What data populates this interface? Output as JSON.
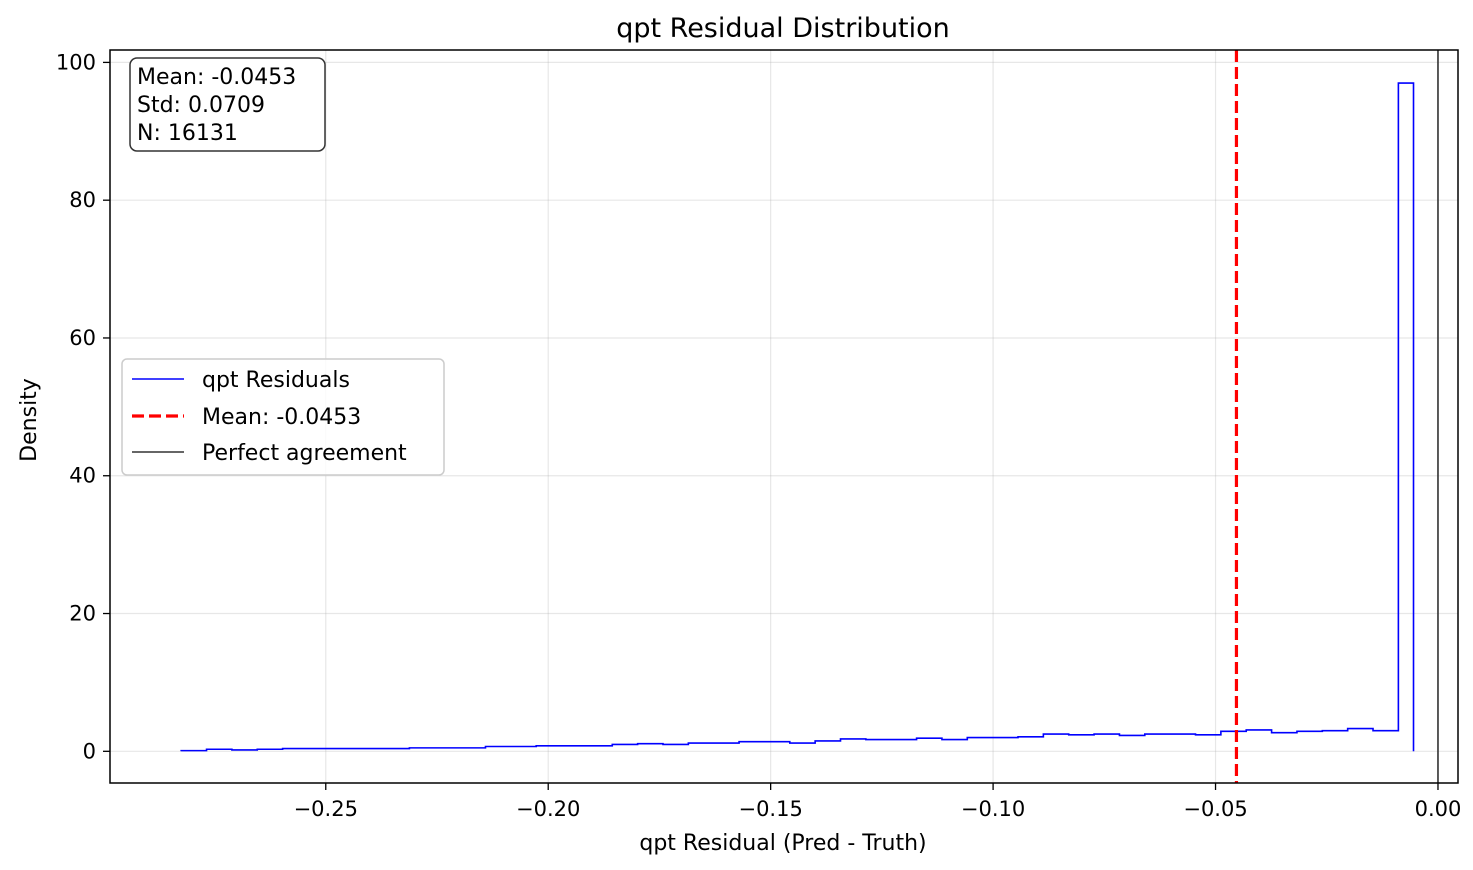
{
  "chart_data": {
    "type": "histogram-step",
    "title": "qpt Residual Distribution",
    "xlabel": "qpt Residual (Pred - Truth)",
    "ylabel": "Density",
    "xlim": [
      -0.2985,
      0.0045
    ],
    "ylim": [
      -4.6,
      101.8
    ],
    "xticks": [
      -0.25,
      -0.2,
      -0.15,
      -0.1,
      -0.05,
      0.0
    ],
    "xtick_labels": [
      "−0.25",
      "−0.20",
      "−0.15",
      "−0.10",
      "−0.05",
      "0.00"
    ],
    "yticks": [
      0,
      20,
      40,
      60,
      80,
      100
    ],
    "ytick_labels": [
      "0",
      "20",
      "40",
      "60",
      "80",
      "100"
    ],
    "grid": true,
    "series": [
      {
        "name": "qpt Residuals",
        "color": "#0000ff",
        "bin_edges": [
          -0.2825,
          -0.2768,
          -0.2711,
          -0.2654,
          -0.2597,
          -0.254,
          -0.2483,
          -0.2426,
          -0.2369,
          -0.2312,
          -0.2255,
          -0.2198,
          -0.2141,
          -0.2084,
          -0.2027,
          -0.197,
          -0.1913,
          -0.1856,
          -0.1799,
          -0.1742,
          -0.1685,
          -0.1628,
          -0.1571,
          -0.1514,
          -0.1457,
          -0.14,
          -0.1343,
          -0.1286,
          -0.1229,
          -0.1172,
          -0.1115,
          -0.1058,
          -0.1001,
          -0.0944,
          -0.0887,
          -0.083,
          -0.0773,
          -0.0716,
          -0.0659,
          -0.0602,
          -0.0545,
          -0.0488,
          -0.0431,
          -0.0374,
          -0.0317,
          -0.026,
          -0.0203,
          -0.0146,
          -0.0089,
          -0.0055
        ],
        "density": [
          0.1,
          0.3,
          0.2,
          0.3,
          0.4,
          0.4,
          0.4,
          0.4,
          0.4,
          0.5,
          0.5,
          0.5,
          0.7,
          0.7,
          0.8,
          0.8,
          0.8,
          1.0,
          1.1,
          1.0,
          1.2,
          1.2,
          1.4,
          1.4,
          1.2,
          1.5,
          1.8,
          1.7,
          1.7,
          1.9,
          1.7,
          2.0,
          2.0,
          2.1,
          2.5,
          2.4,
          2.5,
          2.3,
          2.5,
          2.5,
          2.4,
          2.9,
          3.1,
          2.7,
          2.9,
          3.0,
          3.3,
          3.0,
          97.0
        ]
      },
      {
        "name": "Mean: -0.0453",
        "color": "#ff0000",
        "type": "vline",
        "x": -0.0453,
        "style": "dashed"
      },
      {
        "name": "Perfect agreement",
        "color": "#333333",
        "type": "vline",
        "x": 0.0,
        "style": "solid"
      }
    ],
    "legend_placement": "center-left",
    "stats_box": {
      "lines": [
        "Mean: -0.0453",
        "Std: 0.0709",
        "N: 16131"
      ]
    }
  }
}
